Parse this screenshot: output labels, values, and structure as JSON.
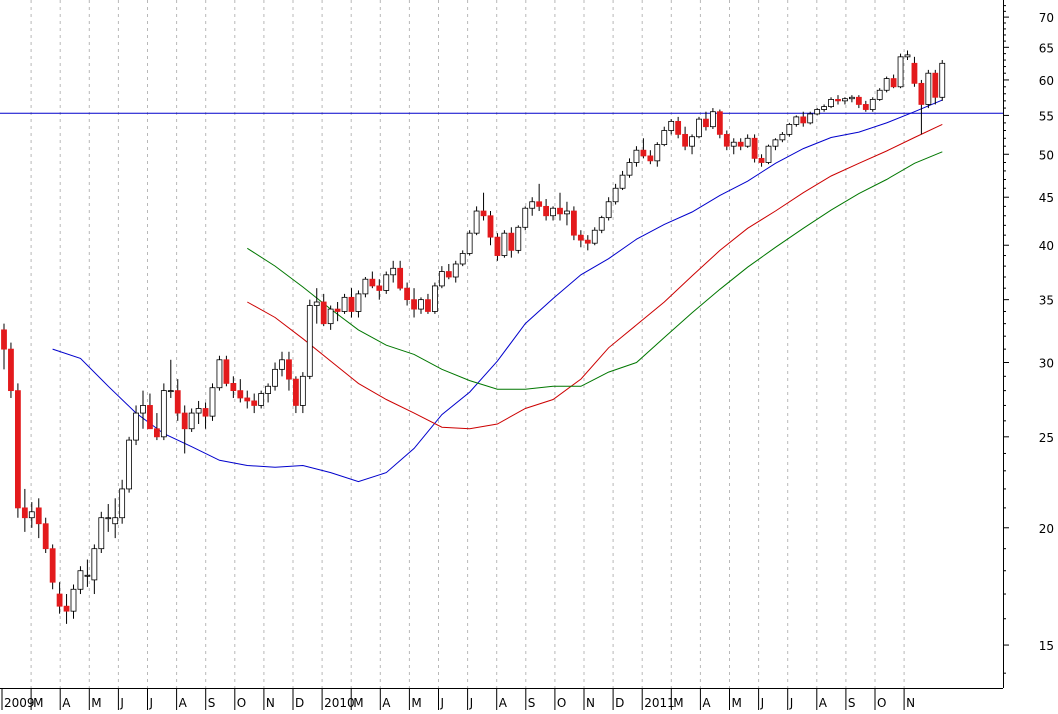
{
  "chart_data": {
    "type": "candlestick",
    "y_scale": "log",
    "ylim": [
      13.5,
      73
    ],
    "yticks": [
      15,
      20,
      25,
      30,
      35,
      40,
      45,
      50,
      55,
      60,
      65,
      70
    ],
    "grid": "vertical-dashed",
    "horizontal_line": {
      "value": 55.3,
      "color": "#0000cc"
    },
    "up_color": "#ffffff",
    "down_color": "#e31a1c",
    "x_labels": [
      "2009",
      "M",
      "A",
      "M",
      "J",
      "J",
      "A",
      "S",
      "O",
      "N",
      "D",
      "2010",
      "M",
      "A",
      "M",
      "J",
      "J",
      "A",
      "S",
      "O",
      "N",
      "D",
      "2011",
      "M",
      "A",
      "M",
      "J",
      "J",
      "A",
      "S",
      "O",
      "N"
    ],
    "candles": [
      [
        32.5,
        33.0,
        29.5,
        31.0
      ],
      [
        31.0,
        31.5,
        27.5,
        28.0
      ],
      [
        28.0,
        28.5,
        20.5,
        21.0
      ],
      [
        21.0,
        22.0,
        19.8,
        20.5
      ],
      [
        20.5,
        21.3,
        20.0,
        20.8
      ],
      [
        21.0,
        21.5,
        19.5,
        20.2
      ],
      [
        20.2,
        20.5,
        18.8,
        19.0
      ],
      [
        19.0,
        19.2,
        17.2,
        17.5
      ],
      [
        17.0,
        17.5,
        16.2,
        16.5
      ],
      [
        16.5,
        17.0,
        15.8,
        16.3
      ],
      [
        16.3,
        17.4,
        16.0,
        17.2
      ],
      [
        17.2,
        18.2,
        17.0,
        18.0
      ],
      [
        17.8,
        18.5,
        17.3,
        17.8
      ],
      [
        17.6,
        19.2,
        17.0,
        19.0
      ],
      [
        19.0,
        20.8,
        18.8,
        20.5
      ],
      [
        20.5,
        21.2,
        19.8,
        20.5
      ],
      [
        20.2,
        21.5,
        19.5,
        20.5
      ],
      [
        20.5,
        22.5,
        20.2,
        22.0
      ],
      [
        22.0,
        25.0,
        21.8,
        24.8
      ],
      [
        24.8,
        27.0,
        24.5,
        26.5
      ],
      [
        26.5,
        28.0,
        25.5,
        27.0
      ],
      [
        27.0,
        27.8,
        25.5,
        25.5
      ],
      [
        25.5,
        26.5,
        24.8,
        25.0
      ],
      [
        25.0,
        28.5,
        24.8,
        28.0
      ],
      [
        28.0,
        30.2,
        27.5,
        28.0
      ],
      [
        28.0,
        28.8,
        26.0,
        26.5
      ],
      [
        26.5,
        27.0,
        24.0,
        25.5
      ],
      [
        25.5,
        26.8,
        25.3,
        26.5
      ],
      [
        26.5,
        27.3,
        25.8,
        26.8
      ],
      [
        26.8,
        27.2,
        25.5,
        26.3
      ],
      [
        26.3,
        28.5,
        26.0,
        28.2
      ],
      [
        28.2,
        30.5,
        28.0,
        30.2
      ],
      [
        30.2,
        30.5,
        28.3,
        28.5
      ],
      [
        28.5,
        29.0,
        27.5,
        28.0
      ],
      [
        28.0,
        28.8,
        27.2,
        27.5
      ],
      [
        27.5,
        28.0,
        26.8,
        27.3
      ],
      [
        27.3,
        27.8,
        26.5,
        27.0
      ],
      [
        27.0,
        28.0,
        26.8,
        27.8
      ],
      [
        27.8,
        28.5,
        27.2,
        28.3
      ],
      [
        28.3,
        30.0,
        28.0,
        29.5
      ],
      [
        29.5,
        30.8,
        29.0,
        30.2
      ],
      [
        30.2,
        30.8,
        28.0,
        28.8
      ],
      [
        28.8,
        29.0,
        26.5,
        27.0
      ],
      [
        27.0,
        29.3,
        26.5,
        29.0
      ],
      [
        29.0,
        35.0,
        28.8,
        34.5
      ],
      [
        34.5,
        36.0,
        33.0,
        34.8
      ],
      [
        34.8,
        35.5,
        32.8,
        33.0
      ],
      [
        33.0,
        34.5,
        32.5,
        34.2
      ],
      [
        34.2,
        34.8,
        33.2,
        34.0
      ],
      [
        34.0,
        35.5,
        33.8,
        35.2
      ],
      [
        35.2,
        36.0,
        33.5,
        34.0
      ],
      [
        34.0,
        35.8,
        33.5,
        35.5
      ],
      [
        35.5,
        37.0,
        35.2,
        36.8
      ],
      [
        36.8,
        37.5,
        36.0,
        36.2
      ],
      [
        36.2,
        36.8,
        35.0,
        35.8
      ],
      [
        35.8,
        37.5,
        35.5,
        37.2
      ],
      [
        37.2,
        38.5,
        36.5,
        37.8
      ],
      [
        37.8,
        38.5,
        35.8,
        36.0
      ],
      [
        36.0,
        36.5,
        34.5,
        35.0
      ],
      [
        35.0,
        36.0,
        33.5,
        34.2
      ],
      [
        34.2,
        35.2,
        33.8,
        35.0
      ],
      [
        35.0,
        35.5,
        33.8,
        34.0
      ],
      [
        34.0,
        36.5,
        33.8,
        36.2
      ],
      [
        36.2,
        38.0,
        36.0,
        37.5
      ],
      [
        37.5,
        38.2,
        36.8,
        37.0
      ],
      [
        37.0,
        38.5,
        36.5,
        38.2
      ],
      [
        38.2,
        39.5,
        38.0,
        39.2
      ],
      [
        39.2,
        41.5,
        39.0,
        41.2
      ],
      [
        41.2,
        44.0,
        41.0,
        43.5
      ],
      [
        43.5,
        45.5,
        42.5,
        43.0
      ],
      [
        43.0,
        43.5,
        40.0,
        40.8
      ],
      [
        40.8,
        41.2,
        38.5,
        39.0
      ],
      [
        39.0,
        41.5,
        38.8,
        41.2
      ],
      [
        41.2,
        41.8,
        38.8,
        39.5
      ],
      [
        39.5,
        42.0,
        39.2,
        41.8
      ],
      [
        41.8,
        44.0,
        41.5,
        43.8
      ],
      [
        43.8,
        45.0,
        43.0,
        44.5
      ],
      [
        44.5,
        46.5,
        43.5,
        44.0
      ],
      [
        44.0,
        44.8,
        42.5,
        43.0
      ],
      [
        43.0,
        44.0,
        42.5,
        43.8
      ],
      [
        43.8,
        45.5,
        42.5,
        43.2
      ],
      [
        43.2,
        44.5,
        42.0,
        43.5
      ],
      [
        43.5,
        44.0,
        40.5,
        41.0
      ],
      [
        41.0,
        41.5,
        39.8,
        40.5
      ],
      [
        40.5,
        41.0,
        39.5,
        40.2
      ],
      [
        40.2,
        41.8,
        40.0,
        41.5
      ],
      [
        41.5,
        43.0,
        41.2,
        42.8
      ],
      [
        42.8,
        45.0,
        42.5,
        44.5
      ],
      [
        44.5,
        46.5,
        44.2,
        46.0
      ],
      [
        46.0,
        48.0,
        45.8,
        47.5
      ],
      [
        47.5,
        49.5,
        47.2,
        49.0
      ],
      [
        49.0,
        51.0,
        48.5,
        50.5
      ],
      [
        50.5,
        52.0,
        49.5,
        49.8
      ],
      [
        49.8,
        50.5,
        48.8,
        49.2
      ],
      [
        49.2,
        51.5,
        48.5,
        51.2
      ],
      [
        51.2,
        53.5,
        51.0,
        53.0
      ],
      [
        53.0,
        54.5,
        52.5,
        54.2
      ],
      [
        54.2,
        54.8,
        52.0,
        52.5
      ],
      [
        52.5,
        53.5,
        50.5,
        51.0
      ],
      [
        51.0,
        52.5,
        50.0,
        52.2
      ],
      [
        52.2,
        54.8,
        52.0,
        54.5
      ],
      [
        54.5,
        55.5,
        53.0,
        53.5
      ],
      [
        53.5,
        56.0,
        53.2,
        55.5
      ],
      [
        55.5,
        55.8,
        52.0,
        52.5
      ],
      [
        52.5,
        53.0,
        50.5,
        51.0
      ],
      [
        51.0,
        52.0,
        50.0,
        51.5
      ],
      [
        51.5,
        52.0,
        50.5,
        51.0
      ],
      [
        51.0,
        52.5,
        50.8,
        52.0
      ],
      [
        52.0,
        52.5,
        49.0,
        49.5
      ],
      [
        49.5,
        50.0,
        48.5,
        49.0
      ],
      [
        49.0,
        51.2,
        48.8,
        51.0
      ],
      [
        51.0,
        52.0,
        50.5,
        51.8
      ],
      [
        51.8,
        52.8,
        51.5,
        52.5
      ],
      [
        52.5,
        54.0,
        52.2,
        53.8
      ],
      [
        53.8,
        55.0,
        53.5,
        54.8
      ],
      [
        54.8,
        55.5,
        53.5,
        54.0
      ],
      [
        54.0,
        55.5,
        53.8,
        55.2
      ],
      [
        55.2,
        56.0,
        55.0,
        55.8
      ],
      [
        55.8,
        56.5,
        55.5,
        56.2
      ],
      [
        56.2,
        57.5,
        56.0,
        57.2
      ],
      [
        57.2,
        57.8,
        56.5,
        57.0
      ],
      [
        57.0,
        57.5,
        56.5,
        57.3
      ],
      [
        57.3,
        57.8,
        56.8,
        57.5
      ],
      [
        57.5,
        57.8,
        56.0,
        56.5
      ],
      [
        56.5,
        57.0,
        55.5,
        55.8
      ],
      [
        55.8,
        57.5,
        55.5,
        57.2
      ],
      [
        57.2,
        58.8,
        57.0,
        58.5
      ],
      [
        58.5,
        60.5,
        58.2,
        60.2
      ],
      [
        60.2,
        60.8,
        58.8,
        59.0
      ],
      [
        59.0,
        64.0,
        58.8,
        63.5
      ],
      [
        63.5,
        64.5,
        63.0,
        63.8
      ],
      [
        62.5,
        63.5,
        59.0,
        59.5
      ],
      [
        59.5,
        60.0,
        52.5,
        56.5
      ],
      [
        56.5,
        61.5,
        56.0,
        61.0
      ],
      [
        61.0,
        61.5,
        56.5,
        57.5
      ],
      [
        57.5,
        63.0,
        57.0,
        62.5
      ]
    ],
    "moving_averages": [
      {
        "period": 20,
        "color": "#0000cc",
        "values": [
          31.0,
          30.3,
          28.3,
          26.5,
          25.2,
          24.4,
          23.6,
          23.3,
          23.2,
          23.3,
          22.9,
          22.4,
          22.9,
          24.3,
          26.4,
          27.9,
          30.1,
          33.0,
          35.1,
          37.2,
          38.7,
          40.6,
          42.1,
          43.4,
          45.2,
          46.8,
          48.9,
          50.7,
          52.1,
          52.8,
          54.0,
          55.5,
          57.1
        ]
      },
      {
        "period": 40,
        "color": "#cc0000",
        "values": [
          34.8,
          33.5,
          31.8,
          30.1,
          28.5,
          27.4,
          26.5,
          25.6,
          25.5,
          25.8,
          26.8,
          27.4,
          28.8,
          31.1,
          32.9,
          34.8,
          37.1,
          39.5,
          41.7,
          43.5,
          45.5,
          47.4,
          48.9,
          50.4,
          52.1,
          53.8
        ]
      },
      {
        "period": 60,
        "color": "#007700",
        "values": [
          39.7,
          38.0,
          36.1,
          34.2,
          32.5,
          31.3,
          30.6,
          29.5,
          28.7,
          28.1,
          28.1,
          28.3,
          28.3,
          29.3,
          30.0,
          31.9,
          33.9,
          35.9,
          37.9,
          39.8,
          41.7,
          43.6,
          45.4,
          47.0,
          48.9,
          50.3
        ]
      }
    ]
  }
}
